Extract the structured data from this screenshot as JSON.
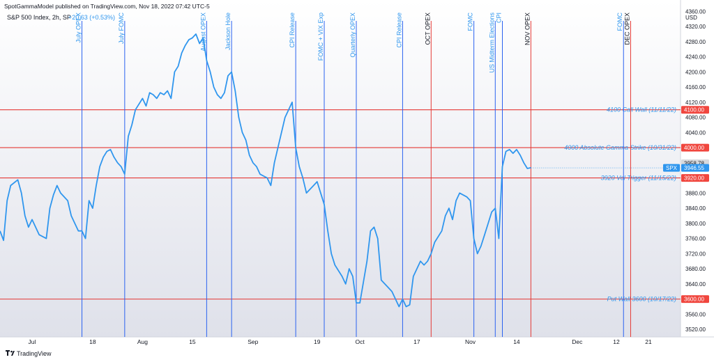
{
  "header": {
    "publisher": "SpotGammaModel published on TradingView.com, Nov 18, 2022 07:42 UTC-5",
    "symbol": "S&P 500 Index, 2h, SP",
    "change": "+20.63 (+0.53%)"
  },
  "footer": {
    "brand": "TradingView"
  },
  "colors": {
    "price_line": "#2f96ee",
    "vline_blue": "#2a62f0",
    "vline_red": "#e53935",
    "hline_red": "#e53935",
    "label_blue": "#2f96ee",
    "level_text": "#2f96ee",
    "badge_red": "#f0463e",
    "badge_blue": "#2f96ee",
    "badge_gray": "#d8dadd"
  },
  "chart_data": {
    "type": "line",
    "title": "S&P 500 Index, 2h, SP",
    "ylabel": "USD",
    "ylim": [
      3500,
      4390
    ],
    "xlim": [
      "2022-06-22",
      "2022-12-30"
    ],
    "y_ticks": [
      3520,
      3560,
      3600,
      3640,
      3680,
      3720,
      3760,
      3800,
      3840,
      3880,
      3920,
      3960,
      4000,
      4040,
      4080,
      4120,
      4160,
      4200,
      4240,
      4280,
      4320,
      4360
    ],
    "x_ticks": [
      {
        "date": "2022-07-01",
        "label": "Jul"
      },
      {
        "date": "2022-07-18",
        "label": "18"
      },
      {
        "date": "2022-08-01",
        "label": "Aug"
      },
      {
        "date": "2022-08-15",
        "label": "15"
      },
      {
        "date": "2022-09-01",
        "label": "Sep"
      },
      {
        "date": "2022-09-19",
        "label": "19"
      },
      {
        "date": "2022-10-01",
        "label": "Oct"
      },
      {
        "date": "2022-10-17",
        "label": "17"
      },
      {
        "date": "2022-11-01",
        "label": "Nov"
      },
      {
        "date": "2022-11-14",
        "label": "14"
      },
      {
        "date": "2022-12-01",
        "label": "Dec"
      },
      {
        "date": "2022-12-12",
        "label": "12"
      },
      {
        "date": "2022-12-21",
        "label": "21"
      }
    ],
    "series": [
      {
        "points": [
          [
            "2022-06-22",
            3780
          ],
          [
            "2022-06-23",
            3755
          ],
          [
            "2022-06-24",
            3860
          ],
          [
            "2022-06-25",
            3900
          ],
          [
            "2022-06-27",
            3915
          ],
          [
            "2022-06-28",
            3880
          ],
          [
            "2022-06-29",
            3820
          ],
          [
            "2022-06-30",
            3790
          ],
          [
            "2022-07-01",
            3810
          ],
          [
            "2022-07-03",
            3770
          ],
          [
            "2022-07-05",
            3760
          ],
          [
            "2022-07-06",
            3840
          ],
          [
            "2022-07-07",
            3875
          ],
          [
            "2022-07-08",
            3900
          ],
          [
            "2022-07-09",
            3880
          ],
          [
            "2022-07-11",
            3860
          ],
          [
            "2022-07-12",
            3820
          ],
          [
            "2022-07-13",
            3800
          ],
          [
            "2022-07-14",
            3780
          ],
          [
            "2022-07-15",
            3780
          ],
          [
            "2022-07-16",
            3760
          ],
          [
            "2022-07-17",
            3860
          ],
          [
            "2022-07-18",
            3840
          ],
          [
            "2022-07-19",
            3900
          ],
          [
            "2022-07-20",
            3950
          ],
          [
            "2022-07-21",
            3975
          ],
          [
            "2022-07-22",
            3990
          ],
          [
            "2022-07-23",
            3995
          ],
          [
            "2022-07-24",
            3975
          ],
          [
            "2022-07-25",
            3960
          ],
          [
            "2022-07-26",
            3950
          ],
          [
            "2022-07-27",
            3930
          ],
          [
            "2022-07-28",
            4030
          ],
          [
            "2022-07-29",
            4060
          ],
          [
            "2022-07-30",
            4100
          ],
          [
            "2022-08-01",
            4130
          ],
          [
            "2022-08-02",
            4110
          ],
          [
            "2022-08-03",
            4145
          ],
          [
            "2022-08-04",
            4140
          ],
          [
            "2022-08-05",
            4130
          ],
          [
            "2022-08-06",
            4145
          ],
          [
            "2022-08-07",
            4140
          ],
          [
            "2022-08-08",
            4150
          ],
          [
            "2022-08-09",
            4130
          ],
          [
            "2022-08-10",
            4200
          ],
          [
            "2022-08-11",
            4215
          ],
          [
            "2022-08-12",
            4250
          ],
          [
            "2022-08-13",
            4270
          ],
          [
            "2022-08-14",
            4285
          ],
          [
            "2022-08-15",
            4290
          ],
          [
            "2022-08-16",
            4300
          ],
          [
            "2022-08-17",
            4275
          ],
          [
            "2022-08-18",
            4290
          ],
          [
            "2022-08-19",
            4230
          ],
          [
            "2022-08-20",
            4200
          ],
          [
            "2022-08-21",
            4160
          ],
          [
            "2022-08-22",
            4140
          ],
          [
            "2022-08-23",
            4130
          ],
          [
            "2022-08-24",
            4145
          ],
          [
            "2022-08-25",
            4190
          ],
          [
            "2022-08-26",
            4200
          ],
          [
            "2022-08-27",
            4150
          ],
          [
            "2022-08-28",
            4080
          ],
          [
            "2022-08-29",
            4040
          ],
          [
            "2022-08-30",
            4020
          ],
          [
            "2022-08-31",
            3980
          ],
          [
            "2022-09-01",
            3960
          ],
          [
            "2022-09-02",
            3950
          ],
          [
            "2022-09-03",
            3930
          ],
          [
            "2022-09-05",
            3920
          ],
          [
            "2022-09-06",
            3900
          ],
          [
            "2022-09-07",
            3960
          ],
          [
            "2022-09-08",
            4000
          ],
          [
            "2022-09-09",
            4040
          ],
          [
            "2022-09-10",
            4080
          ],
          [
            "2022-09-11",
            4100
          ],
          [
            "2022-09-12",
            4120
          ],
          [
            "2022-09-13",
            4000
          ],
          [
            "2022-09-14",
            3950
          ],
          [
            "2022-09-15",
            3920
          ],
          [
            "2022-09-16",
            3880
          ],
          [
            "2022-09-18",
            3900
          ],
          [
            "2022-09-19",
            3910
          ],
          [
            "2022-09-20",
            3880
          ],
          [
            "2022-09-21",
            3850
          ],
          [
            "2022-09-22",
            3780
          ],
          [
            "2022-09-23",
            3720
          ],
          [
            "2022-09-24",
            3690
          ],
          [
            "2022-09-26",
            3660
          ],
          [
            "2022-09-27",
            3640
          ],
          [
            "2022-09-28",
            3680
          ],
          [
            "2022-09-29",
            3660
          ],
          [
            "2022-09-30",
            3590
          ],
          [
            "2022-10-01",
            3590
          ],
          [
            "2022-10-03",
            3700
          ],
          [
            "2022-10-04",
            3780
          ],
          [
            "2022-10-05",
            3790
          ],
          [
            "2022-10-06",
            3760
          ],
          [
            "2022-10-07",
            3650
          ],
          [
            "2022-10-09",
            3630
          ],
          [
            "2022-10-10",
            3620
          ],
          [
            "2022-10-11",
            3600
          ],
          [
            "2022-10-12",
            3580
          ],
          [
            "2022-10-13",
            3600
          ],
          [
            "2022-10-14",
            3580
          ],
          [
            "2022-10-15",
            3585
          ],
          [
            "2022-10-16",
            3660
          ],
          [
            "2022-10-17",
            3680
          ],
          [
            "2022-10-18",
            3700
          ],
          [
            "2022-10-19",
            3690
          ],
          [
            "2022-10-20",
            3700
          ],
          [
            "2022-10-21",
            3720
          ],
          [
            "2022-10-22",
            3750
          ],
          [
            "2022-10-24",
            3780
          ],
          [
            "2022-10-25",
            3820
          ],
          [
            "2022-10-26",
            3840
          ],
          [
            "2022-10-27",
            3810
          ],
          [
            "2022-10-28",
            3860
          ],
          [
            "2022-10-29",
            3880
          ],
          [
            "2022-10-31",
            3870
          ],
          [
            "2022-11-01",
            3860
          ],
          [
            "2022-11-02",
            3760
          ],
          [
            "2022-11-03",
            3720
          ],
          [
            "2022-11-04",
            3740
          ],
          [
            "2022-11-05",
            3770
          ],
          [
            "2022-11-06",
            3800
          ],
          [
            "2022-11-07",
            3830
          ],
          [
            "2022-11-08",
            3840
          ],
          [
            "2022-11-09",
            3760
          ],
          [
            "2022-11-10",
            3950
          ],
          [
            "2022-11-11",
            3990
          ],
          [
            "2022-11-12",
            3995
          ],
          [
            "2022-11-13",
            3985
          ],
          [
            "2022-11-14",
            3995
          ],
          [
            "2022-11-15",
            3980
          ],
          [
            "2022-11-16",
            3960
          ],
          [
            "2022-11-17",
            3945
          ],
          [
            "2022-11-18",
            3947
          ]
        ]
      }
    ],
    "vertical_markers": [
      {
        "date": "2022-07-15",
        "label": "July OPEX",
        "color": "blue"
      },
      {
        "date": "2022-07-27",
        "label": "July FOMC",
        "color": "blue"
      },
      {
        "date": "2022-08-19",
        "label": "August OPEX",
        "color": "blue"
      },
      {
        "date": "2022-08-26",
        "label": "Jackson Hole",
        "color": "blue"
      },
      {
        "date": "2022-09-13",
        "label": "CPI Release",
        "color": "blue"
      },
      {
        "date": "2022-09-21",
        "label": "FOMC + VIX Exp",
        "color": "blue"
      },
      {
        "date": "2022-09-30",
        "label": "Quarterly OPEX",
        "color": "blue"
      },
      {
        "date": "2022-10-13",
        "label": "CPI Release",
        "color": "blue"
      },
      {
        "date": "2022-10-21",
        "label": "OCT OPEX",
        "color": "red"
      },
      {
        "date": "2022-11-02",
        "label": "FOMC",
        "color": "blue"
      },
      {
        "date": "2022-11-08",
        "label": "US Midterm Elections",
        "color": "blue"
      },
      {
        "date": "2022-11-10",
        "label": "CPI",
        "color": "blue"
      },
      {
        "date": "2022-11-18",
        "label": "NOV OPEX",
        "color": "red"
      },
      {
        "date": "2022-12-14",
        "label": "FOMC",
        "color": "blue"
      },
      {
        "date": "2022-12-16",
        "label": "DEC OPEX",
        "color": "red"
      }
    ],
    "horizontal_levels": [
      {
        "value": 4100,
        "label": "4100 Call Wall (11/11/22)",
        "badge": "4100.00"
      },
      {
        "value": 4000,
        "label": "4000 Absolute Gamma Strike (10/31/22)",
        "badge": "4000.00"
      },
      {
        "value": 3920,
        "label": "3920 Vol Trigger (11/15/22)",
        "badge": "3920.00"
      },
      {
        "value": 3600,
        "label": "Put Wall 3600 (10/17/22)",
        "badge": "3600.00"
      }
    ],
    "last_price": {
      "symbol": "SPX",
      "value": 3946.55,
      "badge": "3946.55"
    },
    "prev_close": {
      "value": 3958.78,
      "badge": "3958.78"
    }
  }
}
